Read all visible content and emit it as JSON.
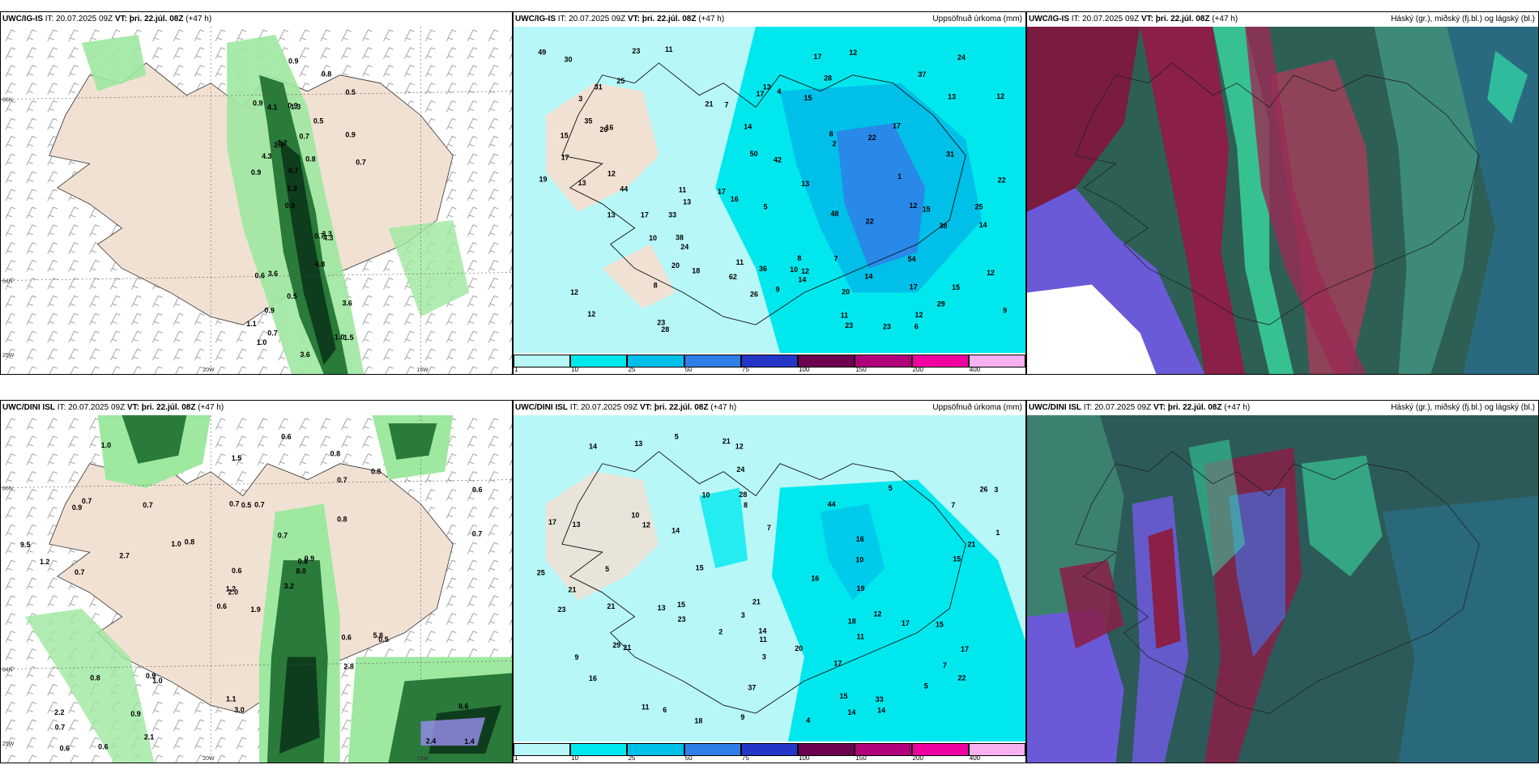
{
  "panels": {
    "p1": {
      "model": "UWC/IG-IS",
      "it": "IT: 20.07.2025 09Z",
      "vt": "VT: þri. 22.júl. 08Z",
      "lead": "(+47 h)",
      "right": ""
    },
    "p2": {
      "model": "UWC/IG-IS",
      "it": "IT: 20.07.2025 09Z",
      "vt": "VT: þri. 22.júl. 08Z",
      "lead": "(+47 h)",
      "right": "Uppsöfnuð úrkoma (mm)"
    },
    "p3": {
      "model": "UWC/IG-IS",
      "it": "IT: 20.07.2025 09Z",
      "vt": "VT: þri. 22.júl. 08Z",
      "lead": "(+47 h)",
      "right": "Háský (gr.), miðský (fj.bl.) og lágský (bl.)"
    },
    "p4": {
      "model": "UWC/DINI ISL",
      "it": "IT: 20.07.2025 09Z",
      "vt": "VT: þri. 22.júl. 08Z",
      "lead": "(+47 h)",
      "right": ""
    },
    "p5": {
      "model": "UWC/DINI ISL",
      "it": "IT: 20.07.2025 09Z",
      "vt": "VT: þri. 22.júl. 08Z",
      "lead": "(+47 h)",
      "right": "Uppsöfnuð úrkoma (mm)"
    },
    "p6": {
      "model": "UWC/DINI ISL",
      "it": "IT: 20.07.2025 09Z",
      "vt": "VT: þri. 22.júl. 08Z",
      "lead": "(+47 h)",
      "right": "Háský (gr.), miðský (fj.bl.) og lágský (bl.)"
    }
  },
  "axis_labels": {
    "lat66": "66N",
    "lat64": "64N",
    "lon20": "20W",
    "lon15": "15W",
    "lon25": "25W"
  },
  "colorbar": {
    "levels": [
      "1",
      "10",
      "25",
      "50",
      "75",
      "100",
      "150",
      "200",
      "400"
    ],
    "colors": [
      "#b8f7f7",
      "#00e8ee",
      "#00bfe8",
      "#2f7fe8",
      "#2336c8",
      "#6e0050",
      "#b0007a",
      "#f000a0",
      "#f8b0f0"
    ]
  },
  "p1_values": [
    "1.5",
    "0.9",
    "0.5",
    "0.9",
    "0.5",
    "1.0",
    "0.9",
    "0.7",
    "0.6",
    "1.2",
    "1.1",
    "0.9",
    "1.3",
    "0.8",
    "4.3",
    "0.9",
    "0.9",
    "0.7",
    "0.7",
    "0.9",
    "1.3",
    "0.5",
    "0.7",
    "4.1",
    "0.8",
    "3.6",
    "1.0",
    "3.6",
    "3.3",
    "3.6",
    "2.7",
    "4.3",
    "4.8",
    "0.7"
  ],
  "p2_values": [
    "15",
    "12",
    "8",
    "17",
    "14",
    "22",
    "23",
    "9",
    "25",
    "20",
    "12",
    "11",
    "12",
    "10",
    "11",
    "12",
    "17",
    "13",
    "18",
    "11",
    "12",
    "23",
    "38",
    "30",
    "62",
    "31",
    "13",
    "14",
    "13",
    "14",
    "12",
    "22",
    "8",
    "48",
    "44",
    "49",
    "50",
    "28",
    "15",
    "17",
    "15",
    "13",
    "17",
    "16",
    "26",
    "24",
    "26",
    "36",
    "31",
    "12",
    "5",
    "12",
    "13",
    "15",
    "10",
    "25",
    "37",
    "54",
    "42",
    "12",
    "1",
    "2",
    "3",
    "4",
    "7",
    "17",
    "21",
    "29",
    "19",
    "11",
    "28",
    "20",
    "22",
    "8",
    "17",
    "38",
    "35",
    "16",
    "14",
    "9",
    "7",
    "6",
    "17",
    "24",
    "23",
    "33",
    "23",
    "13"
  ],
  "p4_values": [
    "1.9",
    "0.9",
    "2.0",
    "2.2",
    "0.8",
    "1.0",
    "0.8",
    "0.7",
    "0.7",
    "3.2",
    "1.0",
    "1.4",
    "0.7",
    "0.6",
    "0.6",
    "0.8",
    "0.6",
    "0.7",
    "0.7",
    "0.8",
    "0.8",
    "0.7",
    "0.9",
    "0.5",
    "0.9",
    "0.5",
    "0.7",
    "1.5",
    "1.2",
    "0.6",
    "0.7",
    "1.2",
    "1.1",
    "0.6",
    "0.7",
    "0.8",
    "0.9",
    "2.4",
    "0.6",
    "5.8",
    "0.6",
    "1.0",
    "2.7",
    "2.8",
    "2.1",
    "9.5",
    "8.0",
    "0.6",
    "3.0"
  ],
  "p5_values": [
    "5",
    "5",
    "7",
    "5",
    "3",
    "3",
    "8",
    "7",
    "9",
    "4",
    "5",
    "11",
    "14",
    "15",
    "10",
    "11",
    "11",
    "16",
    "21",
    "13",
    "15",
    "14",
    "14",
    "15",
    "12",
    "21",
    "12",
    "29",
    "44",
    "37",
    "16",
    "33",
    "15",
    "14",
    "17",
    "12",
    "18",
    "22",
    "26",
    "21",
    "17",
    "23",
    "21",
    "16",
    "14",
    "24",
    "13",
    "15",
    "20",
    "21",
    "19",
    "17",
    "23",
    "25",
    "28",
    "21",
    "18",
    "7",
    "10",
    "1",
    "2",
    "3",
    "6",
    "10",
    "13",
    "17",
    "9"
  ]
}
